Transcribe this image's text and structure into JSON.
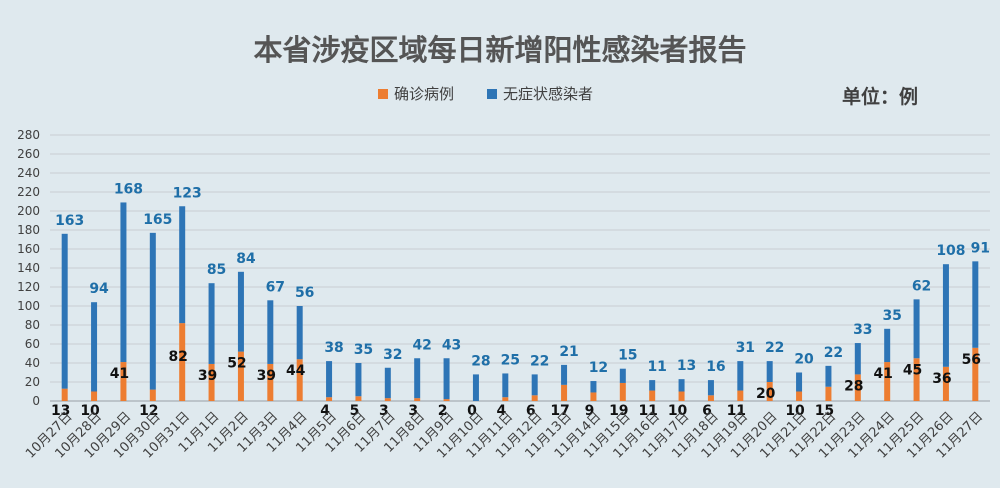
{
  "chart_data": {
    "type": "bar",
    "stacked": true,
    "title": "本省涉疫区域每日新增阳性感染者报告",
    "unit": "单位：例",
    "legend": {
      "position": "top",
      "entries": [
        "确诊病例",
        "无症状感染者"
      ]
    },
    "colors": {
      "confirmed": "#ed7d31",
      "asymptomatic": "#2e75b6",
      "total_label": "#1f6fa8",
      "confirmed_label": "#111111"
    },
    "ylim": [
      0,
      280
    ],
    "yticks": [
      0,
      20,
      40,
      60,
      80,
      100,
      120,
      140,
      160,
      180,
      200,
      220,
      240,
      260,
      280
    ],
    "grid": true,
    "categories": [
      "10月27日",
      "10月28日",
      "10月29日",
      "10月30日",
      "10月31日",
      "11月1日",
      "11月2日",
      "11月3日",
      "11月4日",
      "11月5日",
      "11月6日",
      "11月7日",
      "11月8日",
      "11月9日",
      "11月10日",
      "11月11日",
      "11月12日",
      "11月13日",
      "11月14日",
      "11月15日",
      "11月16日",
      "11月17日",
      "11月18日",
      "11月19日",
      "11月20日",
      "11月21日",
      "11月22日",
      "11月23日",
      "11月24日",
      "11月25日",
      "11月26日",
      "11月27日"
    ],
    "series": [
      {
        "name": "确诊病例",
        "values": [
          13,
          10,
          41,
          12,
          82,
          39,
          52,
          39,
          44,
          4,
          5,
          3,
          3,
          2,
          0,
          4,
          6,
          17,
          9,
          19,
          11,
          10,
          6,
          11,
          20,
          10,
          15,
          28,
          41,
          45,
          36,
          56
        ]
      },
      {
        "name": "无症状感染者",
        "values": [
          163,
          94,
          168,
          165,
          123,
          85,
          84,
          67,
          56,
          38,
          35,
          32,
          42,
          43,
          28,
          25,
          22,
          21,
          12,
          15,
          11,
          13,
          16,
          31,
          22,
          20,
          22,
          33,
          35,
          62,
          108,
          91
        ]
      }
    ]
  }
}
